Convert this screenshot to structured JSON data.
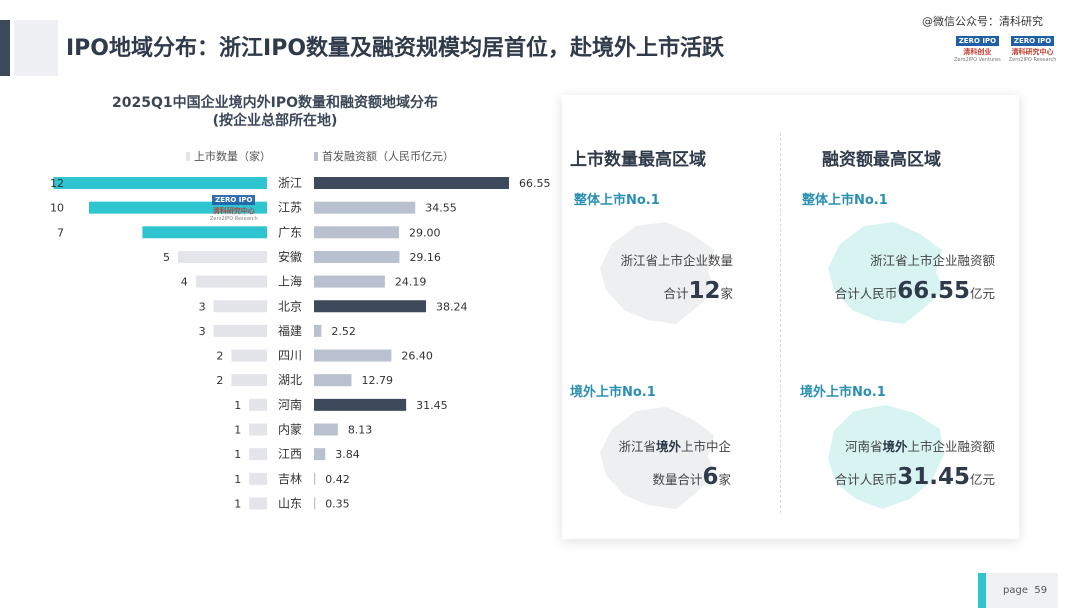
{
  "header": {
    "title": "IPO地域分布：浙江IPO数量及融资规模均居首位，赴境外上市活跃",
    "watermark": "@微信公众号：清科研究"
  },
  "logos": [
    {
      "mark": "ZERO IPO",
      "cn": "清科创业",
      "en": "Zero2IPO Ventures"
    },
    {
      "mark": "ZERO IPO",
      "cn": "清科研究中心",
      "en": "Zero2IPO Research"
    }
  ],
  "chart_logo": {
    "mark": "ZERO IPO",
    "cn": "清科研究中心",
    "en": "Zero2IPO Research"
  },
  "chart_data": {
    "type": "bar",
    "title": "2025Q1中国企业境内外IPO数量和融资额地域分布",
    "subtitle": "(按企业总部所在地)",
    "categories": [
      "浙江",
      "江苏",
      "广东",
      "安徽",
      "上海",
      "北京",
      "福建",
      "四川",
      "湖北",
      "河南",
      "内蒙",
      "江西",
      "吉林",
      "山东"
    ],
    "series": [
      {
        "name": "上市数量（家）",
        "values": [
          12,
          10,
          7,
          5,
          4,
          3,
          3,
          2,
          2,
          1,
          1,
          1,
          1,
          1
        ]
      },
      {
        "name": "首发融资额（人民币亿元）",
        "values": [
          66.55,
          34.55,
          29.0,
          29.16,
          24.19,
          38.24,
          2.52,
          26.4,
          12.79,
          31.45,
          8.13,
          3.84,
          0.42,
          0.35
        ]
      }
    ],
    "value_labels": [
      "66.55",
      "34.55",
      "29.00",
      "29.16",
      "24.19",
      "38.24",
      "2.52",
      "26.40",
      "12.79",
      "31.45",
      "8.13",
      "3.84",
      "0.42",
      "0.35"
    ],
    "count_highlight": [
      true,
      true,
      true,
      false,
      false,
      false,
      false,
      false,
      false,
      false,
      false,
      false,
      false,
      false
    ],
    "amount_highlight": [
      true,
      false,
      false,
      false,
      false,
      true,
      false,
      false,
      false,
      true,
      false,
      false,
      false,
      false
    ],
    "colors": {
      "count_highlight": "#2ec4d0",
      "amount_highlight": "#3d4a5c",
      "muted": "#e3e5ea",
      "muted_amount": "#b9c0cf"
    }
  },
  "panel": {
    "left_heading": "上市数量最高区域",
    "right_heading": "融资额最高区域",
    "q1": {
      "label": "整体上市No.1",
      "line1": "浙江省上市企业数量",
      "prefix": "合计",
      "number": "12",
      "unit": "家"
    },
    "q2": {
      "label": "整体上市No.1",
      "line1": "浙江省上市企业融资额",
      "prefix": "合计人民币",
      "number": "66.55",
      "unit": "亿元"
    },
    "q3": {
      "label": "境外上市No.1",
      "line1a": "浙江省",
      "line1b": "境外",
      "line1c": "上市中企",
      "prefix": "数量合计",
      "number": "6",
      "unit": "家"
    },
    "q4": {
      "label": "境外上市No.1",
      "line1a": "河南省",
      "line1b": "境外",
      "line1c": "上市企业融资额",
      "prefix": "合计人民币",
      "number": "31.45",
      "unit": "亿元"
    }
  },
  "footer": {
    "page_label": "page",
    "page_number": "59"
  }
}
